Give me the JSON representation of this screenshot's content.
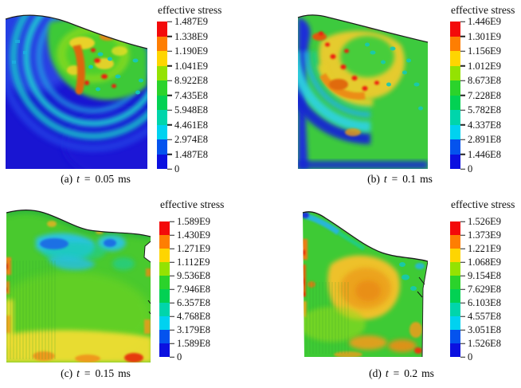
{
  "figure": {
    "colorbar_colors_top_to_bottom": [
      "#f30a0a",
      "#fe7e02",
      "#fed501",
      "#94e202",
      "#2bd32b",
      "#02d153",
      "#00d5ab",
      "#00d2f0",
      "#0453ee",
      "#0b10e0"
    ],
    "panels": [
      {
        "id": "a",
        "legend": {
          "title": "effective stress",
          "ticks": [
            "1.487E9",
            "1.338E9",
            "1.190E9",
            "1.041E9",
            "8.922E8",
            "7.435E8",
            "5.948E8",
            "4.461E8",
            "2.974E8",
            "1.487E8",
            "0"
          ]
        },
        "caption": {
          "label": "(a)",
          "var": "t",
          "eq": "=",
          "value": "0.05",
          "unit": "ms"
        }
      },
      {
        "id": "b",
        "legend": {
          "title": "effective stress",
          "ticks": [
            "1.446E9",
            "1.301E9",
            "1.156E9",
            "1.012E9",
            "8.673E8",
            "7.228E8",
            "5.782E8",
            "4.337E8",
            "2.891E8",
            "1.446E8",
            "0"
          ]
        },
        "caption": {
          "label": "(b)",
          "var": "t",
          "eq": "=",
          "value": "0.1",
          "unit": "ms"
        }
      },
      {
        "id": "c",
        "legend": {
          "title": "effective stress",
          "ticks": [
            "1.589E9",
            "1.430E9",
            "1.271E9",
            "1.112E9",
            "9.536E8",
            "7.946E8",
            "6.357E8",
            "4.768E8",
            "3.179E8",
            "1.589E8",
            "0"
          ]
        },
        "caption": {
          "label": "(c)",
          "var": "t",
          "eq": "=",
          "value": "0.15",
          "unit": "ms"
        }
      },
      {
        "id": "d",
        "legend": {
          "title": "effective stress",
          "ticks": [
            "1.526E9",
            "1.373E9",
            "1.221E9",
            "1.068E9",
            "9.154E8",
            "7.629E8",
            "6.103E8",
            "4.557E8",
            "3.051E8",
            "1.526E8",
            "0"
          ]
        },
        "caption": {
          "label": "(d)",
          "var": "t",
          "eq": "=",
          "value": "0.2",
          "unit": "ms"
        }
      }
    ]
  },
  "chart_data": [
    {
      "type": "heatmap",
      "title": "(a) t = 0.05 ms",
      "legend_title": "effective stress",
      "time_ms": 0.05,
      "levels_high_to_low": [
        1487000000.0,
        1338000000.0,
        1190000000.0,
        1041000000.0,
        892200000.0,
        743500000.0,
        594800000.0,
        446100000.0,
        297400000.0,
        148700000.0,
        0
      ],
      "level_labels_high_to_low": [
        "1.487E9",
        "1.338E9",
        "1.190E9",
        "1.041E9",
        "8.922E8",
        "7.435E8",
        "5.948E8",
        "4.461E8",
        "2.974E8",
        "1.487E8",
        "0"
      ],
      "palette_high_to_low": [
        "#f30a0a",
        "#fe7e02",
        "#fed501",
        "#94e202",
        "#2bd32b",
        "#02d153",
        "#00d5ab",
        "#00d2f0",
        "#0453ee",
        "#0b10e0"
      ],
      "legend_position": "right",
      "field_summary": "mostly low-stress blue body; green/yellow hotspot with orange-red streaks under curved top surface, ringed by cyan/blue arc bands"
    },
    {
      "type": "heatmap",
      "title": "(b) t = 0.1 ms",
      "legend_title": "effective stress",
      "time_ms": 0.1,
      "levels_high_to_low": [
        1446000000.0,
        1301000000.0,
        1156000000.0,
        1012000000.0,
        867300000.0,
        722800000.0,
        578200000.0,
        433700000.0,
        289100000.0,
        144600000.0,
        0
      ],
      "level_labels_high_to_low": [
        "1.446E9",
        "1.301E9",
        "1.156E9",
        "1.012E9",
        "8.673E8",
        "7.228E8",
        "5.782E8",
        "4.337E8",
        "2.891E8",
        "1.446E8",
        "0"
      ],
      "palette_high_to_low": [
        "#f30a0a",
        "#fe7e02",
        "#fed501",
        "#94e202",
        "#2bd32b",
        "#02d153",
        "#00d5ab",
        "#00d2f0",
        "#0453ee",
        "#0b10e0"
      ],
      "legend_position": "right",
      "field_summary": "expanded green/yellow stress zone with red speckles filling upper body; blue strip on left edge and blue/cyan arc bands along lower-left and bottom"
    },
    {
      "type": "heatmap",
      "title": "(c) t = 0.15 ms",
      "legend_title": "effective stress",
      "time_ms": 0.15,
      "levels_high_to_low": [
        1589000000.0,
        1430000000.0,
        1271000000.0,
        1112000000.0,
        953600000.0,
        794600000.0,
        635700000.0,
        476800000.0,
        317900000.0,
        158900000.0,
        0
      ],
      "level_labels_high_to_low": [
        "1.589E9",
        "1.430E9",
        "1.271E9",
        "1.112E9",
        "9.536E8",
        "7.946E8",
        "6.357E8",
        "4.768E8",
        "3.179E8",
        "1.589E8",
        "0"
      ],
      "palette_high_to_low": [
        "#f30a0a",
        "#fe7e02",
        "#fed501",
        "#94e202",
        "#2bd32b",
        "#02d153",
        "#00d5ab",
        "#00d2f0",
        "#0453ee",
        "#0b10e0"
      ],
      "legend_position": "right",
      "field_summary": "green-dominated field; cyan/blue low-stress pockets below wavy top surface, yellow band with orange-red patches along bottom and left edge, notch on right edge"
    },
    {
      "type": "heatmap",
      "title": "(d) t = 0.2 ms",
      "legend_title": "effective stress",
      "time_ms": 0.2,
      "levels_high_to_low": [
        1526000000.0,
        1373000000.0,
        1221000000.0,
        1068000000.0,
        915400000.0,
        762900000.0,
        610300000.0,
        455700000.0,
        305100000.0,
        152600000.0,
        0
      ],
      "level_labels_high_to_low": [
        "1.526E9",
        "1.373E9",
        "1.221E9",
        "1.068E9",
        "9.154E8",
        "7.629E8",
        "6.103E8",
        "4.557E8",
        "3.051E8",
        "1.526E8",
        "0"
      ],
      "palette_high_to_low": [
        "#f30a0a",
        "#fe7e02",
        "#fed501",
        "#94e202",
        "#2bd32b",
        "#02d153",
        "#00d5ab",
        "#00d2f0",
        "#0453ee",
        "#0b10e0"
      ],
      "legend_position": "right",
      "field_summary": "green body with steeply sloped top surface; large yellow-orange core, orange-red streaks on left edge, orange patches at bottom, cyan streak near top-left corner"
    }
  ]
}
